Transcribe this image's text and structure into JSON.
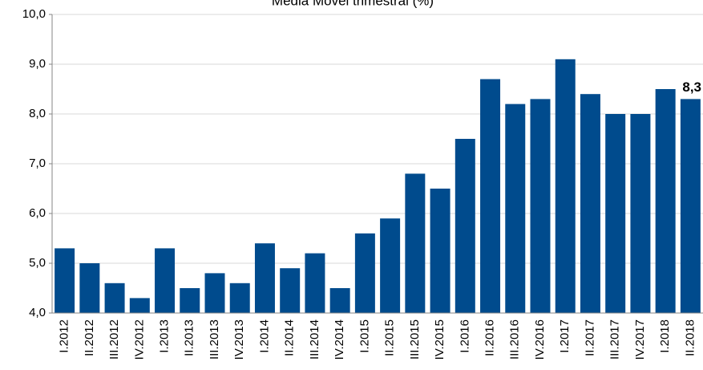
{
  "chart_data": {
    "type": "bar",
    "title": "Média Móvel trimestral (%)",
    "categories": [
      "I.2012",
      "II.2012",
      "III.2012",
      "IV.2012",
      "I.2013",
      "II.2013",
      "III.2013",
      "IV.2013",
      "I.2014",
      "II.2014",
      "III.2014",
      "IV.2014",
      "I.2015",
      "II.2015",
      "III.2015",
      "IV.2015",
      "I.2016",
      "II.2016",
      "III.2016",
      "IV.2016",
      "I.2017",
      "II.2017",
      "III.2017",
      "IV.2017",
      "I.2018",
      "II.2018"
    ],
    "values": [
      5.3,
      5.0,
      4.6,
      4.3,
      5.3,
      4.5,
      4.8,
      4.6,
      5.4,
      4.9,
      5.2,
      4.5,
      5.6,
      5.9,
      6.8,
      6.5,
      7.5,
      8.7,
      8.2,
      8.3,
      9.1,
      8.4,
      8.0,
      8.0,
      8.5,
      8.3
    ],
    "value_labels": [
      null,
      null,
      null,
      null,
      null,
      null,
      null,
      null,
      null,
      null,
      null,
      null,
      null,
      null,
      null,
      null,
      null,
      null,
      null,
      null,
      null,
      null,
      null,
      null,
      null,
      "8,3"
    ],
    "color": "#004b8d",
    "ylim": [
      4,
      10
    ],
    "yticks": [
      {
        "value": 4,
        "label": "4,0"
      },
      {
        "value": 5,
        "label": "5,0"
      },
      {
        "value": 6,
        "label": "6,0"
      },
      {
        "value": 7,
        "label": "7,0"
      },
      {
        "value": 8,
        "label": "8,0"
      },
      {
        "value": 9,
        "label": "9,0"
      },
      {
        "value": 10,
        "label": "10,0"
      }
    ],
    "grid": true
  }
}
